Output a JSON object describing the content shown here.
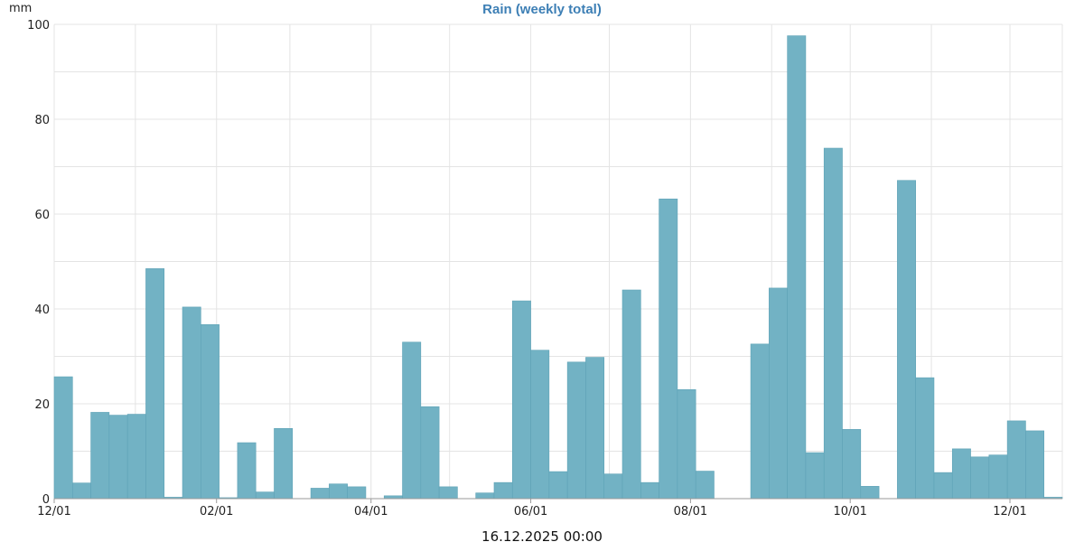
{
  "colors": {
    "bar_fill": "#72b2c4",
    "bar_stroke": "#5ea2b6",
    "title": "#3d7fb5",
    "grid": "#e4e4e4"
  },
  "footer": {
    "timestamp": "16.12.2025 00:00"
  },
  "chart_data": {
    "type": "bar",
    "title": "Rain (weekly total)",
    "xlabel": "",
    "ylabel": "mm",
    "ylim": [
      0,
      100
    ],
    "y_ticks": [
      0,
      20,
      40,
      60,
      80,
      100
    ],
    "grid": true,
    "x_tick_labels": [
      "12/01",
      "02/01",
      "04/01",
      "06/01",
      "08/01",
      "10/01",
      "12/01"
    ],
    "categories": [
      "2024-12-01",
      "2024-12-08",
      "2024-12-15",
      "2024-12-22",
      "2024-12-29",
      "2025-01-05",
      "2025-01-12",
      "2025-01-19",
      "2025-01-26",
      "2025-02-02",
      "2025-02-09",
      "2025-02-16",
      "2025-02-23",
      "2025-03-02",
      "2025-03-09",
      "2025-03-16",
      "2025-03-23",
      "2025-03-30",
      "2025-04-06",
      "2025-04-13",
      "2025-04-20",
      "2025-04-27",
      "2025-05-04",
      "2025-05-11",
      "2025-05-18",
      "2025-05-25",
      "2025-06-01",
      "2025-06-08",
      "2025-06-15",
      "2025-06-22",
      "2025-06-29",
      "2025-07-06",
      "2025-07-13",
      "2025-07-20",
      "2025-07-27",
      "2025-08-03",
      "2025-08-10",
      "2025-08-17",
      "2025-08-24",
      "2025-08-31",
      "2025-09-07",
      "2025-09-14",
      "2025-09-21",
      "2025-09-28",
      "2025-10-05",
      "2025-10-12",
      "2025-10-19",
      "2025-10-26",
      "2025-11-02",
      "2025-11-09",
      "2025-11-16",
      "2025-11-23",
      "2025-11-30",
      "2025-12-07",
      "2025-12-14"
    ],
    "values": [
      25.7,
      3.3,
      18.2,
      17.6,
      17.8,
      48.5,
      0.3,
      40.4,
      36.7,
      0.2,
      11.8,
      1.4,
      14.8,
      0.0,
      2.2,
      3.1,
      2.5,
      0.0,
      0.6,
      33.0,
      19.4,
      2.5,
      0.0,
      1.2,
      3.4,
      41.7,
      31.3,
      5.7,
      28.8,
      29.8,
      5.2,
      44.0,
      3.4,
      63.2,
      23.0,
      5.8,
      0.0,
      0.0,
      32.6,
      44.4,
      97.6,
      9.7,
      73.9,
      14.6,
      2.6,
      0.0,
      67.1,
      25.5,
      5.5,
      10.5,
      8.8,
      9.2,
      16.4,
      14.3,
      0.3
    ]
  }
}
